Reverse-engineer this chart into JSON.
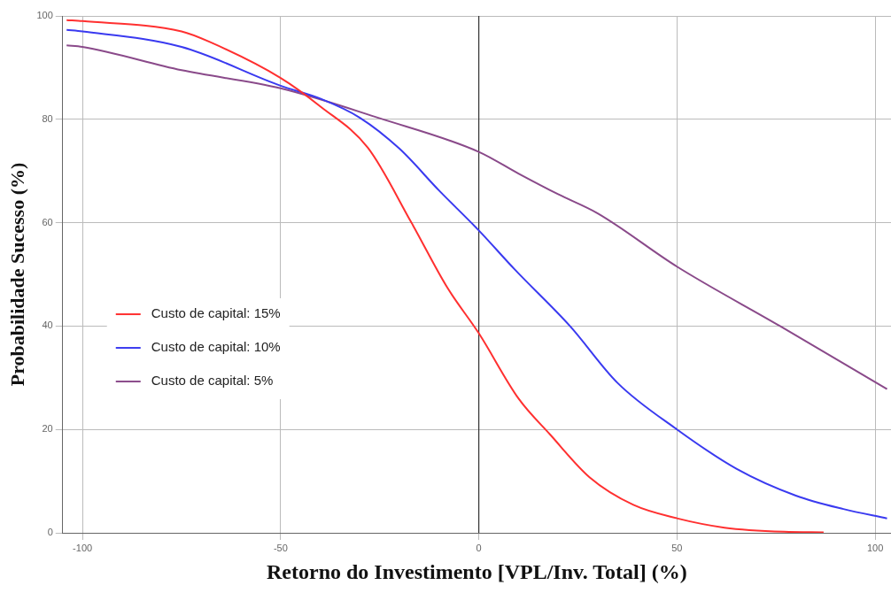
{
  "chart_data": {
    "type": "line",
    "xlabel": "Retorno do Investimento [VPL/Inv. Total] (%)",
    "ylabel": "Probabilidade Sucesso (%)",
    "xlim": [
      -105,
      104
    ],
    "xticks": [
      -100,
      -50,
      0,
      50,
      100
    ],
    "ylim": [
      0,
      100
    ],
    "yticks": [
      0,
      20,
      40,
      60,
      80,
      100
    ],
    "grid": true,
    "legend": "left",
    "marker": "none",
    "line_style": "solid",
    "ref_lines": [
      {
        "axis": "x",
        "value": 0,
        "color": "#333333"
      }
    ],
    "series": [
      {
        "name": "Custo de capital: 15%",
        "color": "#ff3030",
        "x": [
          -104,
          -100,
          -75,
          -68,
          -50,
          -40,
          -28,
          -17,
          -8,
          0,
          10,
          18,
          28,
          39,
          50,
          62,
          77,
          87
        ],
        "values": [
          99.2,
          99,
          97,
          95,
          88,
          82.5,
          74.5,
          60,
          47.5,
          38.6,
          26,
          19,
          10.7,
          5.4,
          2.8,
          1,
          0.2,
          0.1
        ]
      },
      {
        "name": "Custo de capital: 10%",
        "color": "#3a3af0",
        "x": [
          -104,
          -100,
          -75,
          -50,
          -40,
          -30,
          -20,
          -10,
          0,
          9,
          23,
          35,
          50,
          65,
          80,
          92,
          103
        ],
        "values": [
          97.3,
          97,
          94,
          86.5,
          84,
          80.3,
          74.3,
          66.2,
          58.5,
          51,
          40,
          29,
          20,
          12.4,
          7.2,
          4.6,
          2.8
        ]
      },
      {
        "name": "Custo de capital: 5%",
        "color": "#8a4a8a",
        "x": [
          -104,
          -100,
          -75,
          -50,
          -25,
          0,
          10,
          20,
          30,
          50,
          76,
          103
        ],
        "values": [
          94.3,
          94,
          89.5,
          86,
          80.2,
          73.7,
          69.5,
          65.5,
          61.8,
          51.5,
          40,
          27.8
        ]
      }
    ]
  }
}
